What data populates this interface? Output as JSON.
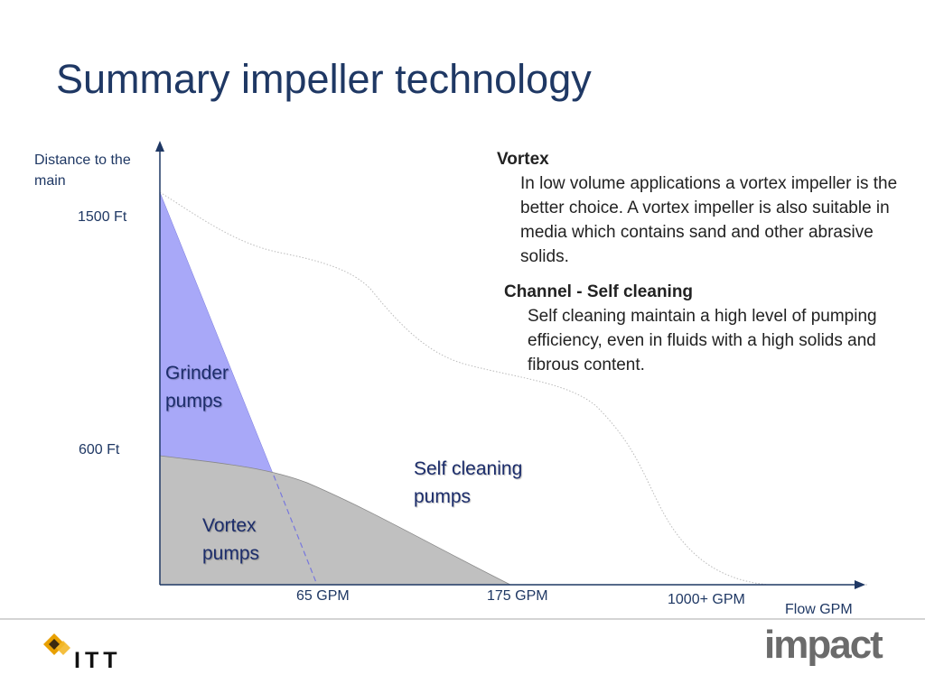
{
  "title": "Summary impeller technology",
  "axes": {
    "y_label": "Distance to the main",
    "x_label": "Flow GPM",
    "y_ticks": [
      "1500 Ft",
      "600 Ft"
    ],
    "x_ticks": [
      "65 GPM",
      "175 GPM",
      "1000+ GPM"
    ]
  },
  "regions": {
    "grinder": "Grinder pumps",
    "vortex": "Vortex pumps",
    "self_cleaning": "Self cleaning pumps"
  },
  "descriptions": [
    {
      "heading": "Vortex",
      "body": "In low volume applications a vortex impeller is the better choice. A vortex impeller is also suitable in media which contains sand and other abrasive solids."
    },
    {
      "heading": "Channel - Self cleaning",
      "body": "Self cleaning maintain a high level of pumping efficiency, even in fluids with a high solids and fibrous content."
    }
  ],
  "logos": {
    "left": "ITT",
    "right": "impact"
  },
  "colors": {
    "title": "#1f3864",
    "grinder_fill": "#a8a8f8",
    "vortex_fill": "#c0c0c0",
    "axis": "#1f3864"
  }
}
